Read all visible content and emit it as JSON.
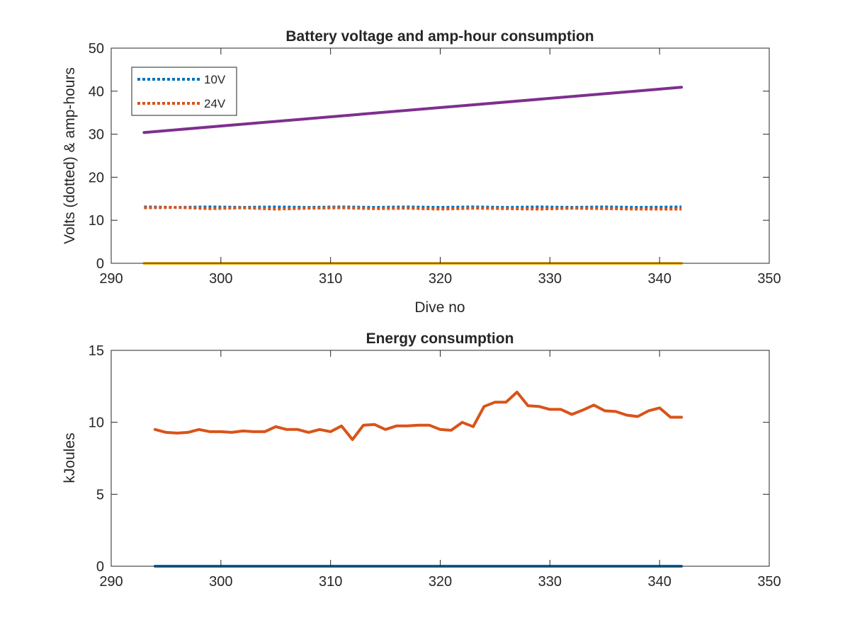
{
  "chart_data": [
    {
      "type": "line",
      "title": "Battery voltage and amp-hour consumption",
      "xlabel": "Dive no",
      "ylabel": "Volts (dotted) & amp-hours",
      "xlim": [
        290,
        350
      ],
      "ylim": [
        0,
        50
      ],
      "xticks": [
        "290",
        "300",
        "310",
        "320",
        "330",
        "340",
        "350"
      ],
      "yticks": [
        "0",
        "10",
        "20",
        "30",
        "40",
        "50"
      ],
      "legend_placement": "top-left",
      "series": [
        {
          "name": "10V",
          "style": "dotted",
          "color": "#0072BD",
          "x": [
            293,
            296,
            299,
            302,
            305,
            308,
            311,
            314,
            317,
            320,
            323,
            326,
            329,
            332,
            335,
            338,
            342
          ],
          "y": [
            13.1,
            13.0,
            13.1,
            13.0,
            13.1,
            13.0,
            13.1,
            13.0,
            13.1,
            13.0,
            13.1,
            13.0,
            13.1,
            13.0,
            13.1,
            13.0,
            13.1
          ]
        },
        {
          "name": "24V",
          "style": "dotted",
          "color": "#D95319",
          "x": [
            293,
            296,
            299,
            302,
            305,
            308,
            311,
            314,
            317,
            320,
            323,
            326,
            329,
            332,
            335,
            338,
            342
          ],
          "y": [
            12.9,
            13.0,
            12.7,
            12.9,
            12.6,
            12.8,
            12.9,
            12.7,
            12.8,
            12.6,
            12.8,
            12.7,
            12.6,
            12.8,
            12.7,
            12.6,
            12.6
          ]
        },
        {
          "style": "solid",
          "color": "#7E2F8E",
          "x": [
            293,
            342
          ],
          "y": [
            30.4,
            40.9
          ]
        },
        {
          "style": "solid",
          "color": "#EDB120",
          "x": [
            293,
            342
          ],
          "y": [
            0,
            0
          ]
        }
      ]
    },
    {
      "type": "line",
      "title": "Energy consumption",
      "xlabel": "",
      "ylabel": "kJoules",
      "xlim": [
        290,
        350
      ],
      "ylim": [
        0,
        15
      ],
      "xticks": [
        "290",
        "300",
        "310",
        "320",
        "330",
        "340",
        "350"
      ],
      "yticks": [
        "0",
        "5",
        "10",
        "15"
      ],
      "series": [
        {
          "style": "solid",
          "color": "#0072BD",
          "x": [
            294,
            342
          ],
          "y": [
            0,
            0
          ]
        },
        {
          "style": "solid",
          "color": "#D95319",
          "x": [
            294,
            295,
            296,
            297,
            298,
            299,
            300,
            301,
            302,
            303,
            304,
            305,
            306,
            307,
            308,
            309,
            310,
            311,
            312,
            313,
            314,
            315,
            316,
            317,
            318,
            319,
            320,
            321,
            322,
            323,
            324,
            325,
            326,
            327,
            328,
            329,
            330,
            331,
            332,
            333,
            334,
            335,
            336,
            337,
            338,
            339,
            340,
            341,
            342
          ],
          "y": [
            9.5,
            9.3,
            9.25,
            9.3,
            9.5,
            9.35,
            9.35,
            9.3,
            9.4,
            9.35,
            9.35,
            9.7,
            9.5,
            9.5,
            9.3,
            9.5,
            9.35,
            9.75,
            8.8,
            9.8,
            9.85,
            9.5,
            9.75,
            9.75,
            9.8,
            9.8,
            9.5,
            9.45,
            10.0,
            9.7,
            11.1,
            11.4,
            11.4,
            12.1,
            11.15,
            11.1,
            10.9,
            10.9,
            10.55,
            10.85,
            11.2,
            10.8,
            10.75,
            10.5,
            10.4,
            10.8,
            11.0,
            10.35,
            10.35
          ]
        }
      ]
    }
  ]
}
